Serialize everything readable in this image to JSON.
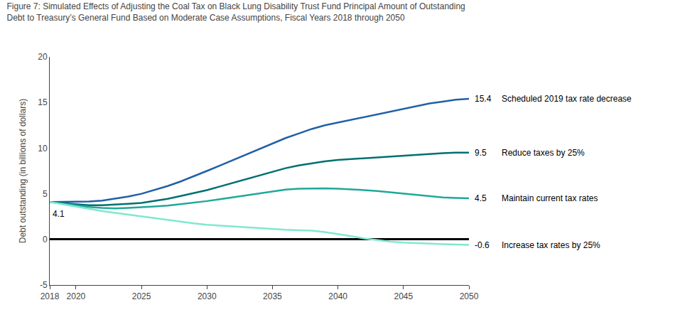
{
  "chart_data": {
    "type": "line",
    "title": "Figure 7: Simulated Effects of Adjusting the Coal Tax on Black Lung Disability Trust Fund Principal Amount of Outstanding\nDebt to Treasury’s General Fund Based on Moderate Case Assumptions, Fiscal Years 2018 through 2050",
    "ylabel": "Debt outstanding (in billions of dollars)",
    "xlim": [
      2018,
      2050
    ],
    "xticks": [
      2018,
      2020,
      2025,
      2030,
      2035,
      2040,
      2045,
      2050
    ],
    "ylim": [
      -5,
      20
    ],
    "yticks": [
      -5,
      0,
      5,
      10,
      15,
      20
    ],
    "grid": false,
    "x": [
      2018,
      2019,
      2020,
      2021,
      2022,
      2023,
      2024,
      2025,
      2026,
      2027,
      2028,
      2029,
      2030,
      2031,
      2032,
      2033,
      2034,
      2035,
      2036,
      2037,
      2038,
      2039,
      2040,
      2041,
      2042,
      2043,
      2044,
      2045,
      2046,
      2047,
      2048,
      2049,
      2050
    ],
    "series": [
      {
        "name": "Scheduled 2019 tax rate decrease",
        "color": "#2060a8",
        "values": [
          4.1,
          4.1,
          4.1,
          4.15,
          4.25,
          4.45,
          4.7,
          5.0,
          5.4,
          5.85,
          6.35,
          6.9,
          7.5,
          8.1,
          8.7,
          9.3,
          9.9,
          10.5,
          11.1,
          11.6,
          12.1,
          12.5,
          12.8,
          13.1,
          13.4,
          13.7,
          14.0,
          14.3,
          14.6,
          14.9,
          15.1,
          15.3,
          15.4
        ]
      },
      {
        "name": "Reduce taxes by 25%",
        "color": "#007070",
        "values": [
          4.1,
          4.0,
          3.85,
          3.75,
          3.75,
          3.8,
          3.9,
          4.0,
          4.2,
          4.45,
          4.75,
          5.05,
          5.4,
          5.8,
          6.2,
          6.6,
          7.0,
          7.4,
          7.8,
          8.1,
          8.35,
          8.55,
          8.7,
          8.8,
          8.9,
          9.0,
          9.1,
          9.2,
          9.3,
          9.4,
          9.45,
          9.5,
          9.5
        ]
      },
      {
        "name": "Maintain current tax rates",
        "color": "#20a898",
        "values": [
          4.1,
          3.9,
          3.7,
          3.55,
          3.45,
          3.4,
          3.45,
          3.5,
          3.6,
          3.7,
          3.85,
          4.0,
          4.2,
          4.4,
          4.6,
          4.8,
          5.0,
          5.25,
          5.45,
          5.55,
          5.6,
          5.6,
          5.55,
          5.5,
          5.4,
          5.3,
          5.15,
          5.0,
          4.85,
          4.7,
          4.6,
          4.55,
          4.5
        ]
      },
      {
        "name": "Increase tax rates by 25%",
        "color": "#80e8d0",
        "values": [
          4.1,
          3.85,
          3.55,
          3.3,
          3.1,
          2.9,
          2.7,
          2.5,
          2.3,
          2.1,
          1.9,
          1.75,
          1.6,
          1.5,
          1.4,
          1.3,
          1.2,
          1.1,
          1.05,
          1.0,
          0.95,
          0.8,
          0.6,
          0.35,
          0.1,
          -0.1,
          -0.25,
          -0.35,
          -0.42,
          -0.48,
          -0.53,
          -0.57,
          -0.6
        ]
      }
    ],
    "annotations": [
      {
        "text": "4.1",
        "x": 2018,
        "y": 4.1
      },
      {
        "text": "15.4",
        "x": 2050,
        "y": 15.4
      },
      {
        "text": "9.5",
        "x": 2050,
        "y": 9.5
      },
      {
        "text": "4.5",
        "x": 2050,
        "y": 4.5
      },
      {
        "text": "-0.6",
        "x": 2050,
        "y": -0.6
      }
    ]
  }
}
